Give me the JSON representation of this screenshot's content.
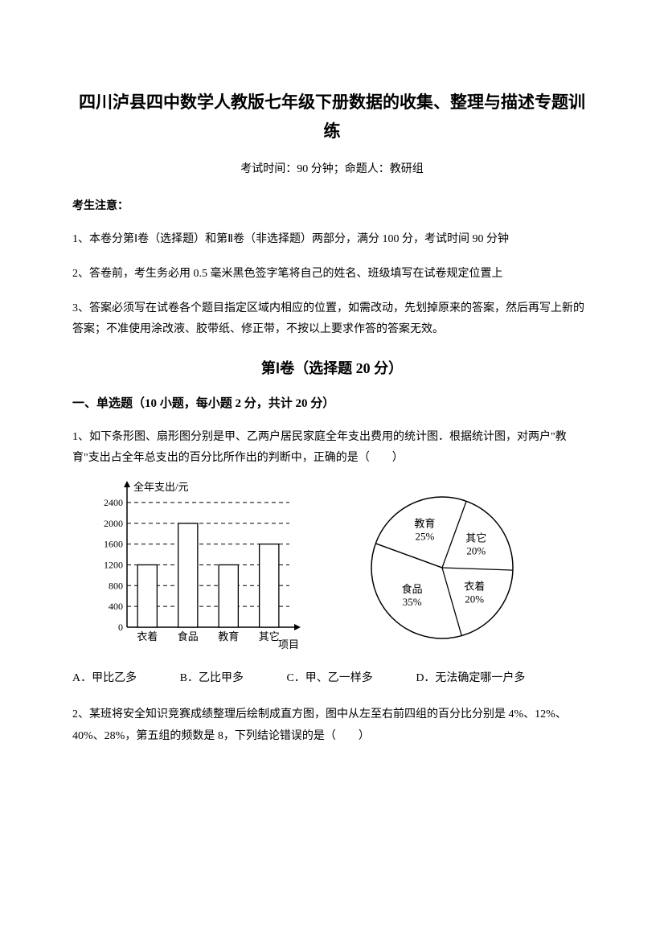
{
  "title": "四川泸县四中数学人教版七年级下册数据的收集、整理与描述专题训练",
  "subtitle": "考试时间：90 分钟；命题人：教研组",
  "notice_header": "考生注意：",
  "notices": [
    "1、本卷分第Ⅰ卷（选择题）和第Ⅱ卷（非选择题）两部分，满分 100 分，考试时间 90 分钟",
    "2、答卷前，考生务必用 0.5 毫米黑色签字笔将自己的姓名、班级填写在试卷规定位置上",
    "3、答案必须写在试卷各个题目指定区域内相应的位置，如需改动，先划掉原来的答案，然后再写上新的答案；不准使用涂改液、胶带纸、修正带，不按以上要求作答的答案无效。"
  ],
  "section1_header": "第Ⅰ卷（选择题  20 分）",
  "q_section_header": "一、单选题（10 小题，每小题 2 分，共计 20 分）",
  "q1_text": "1、如下条形图、扇形图分别是甲、乙两户居民家庭全年支出费用的统计图．根据统计图，对两户\"教育\"支出占全年总支出的百分比所作出的判断中，正确的是（　　）",
  "q1_options": [
    "A．甲比乙多",
    "B．乙比甲多",
    "C．甲、乙一样多",
    "D．无法确定哪一户多"
  ],
  "q2_text": "2、某班将安全知识竞赛成绩整理后绘制成直方图，图中从左至右前四组的百分比分别是 4%、12%、40%、28%，第五组的频数是 8，下列结论错误的是（　　）",
  "bar_chart": {
    "y_label": "全年支出/元",
    "x_label": "项目",
    "categories": [
      "衣着",
      "食品",
      "教育",
      "其它"
    ],
    "values": [
      1200,
      2000,
      1200,
      1600
    ],
    "y_ticks": [
      0,
      400,
      800,
      1200,
      1600,
      2000,
      2400
    ],
    "y_max": 2600,
    "bar_color": "#ffffff",
    "bar_stroke": "#000000",
    "grid_dash": "5,4",
    "axis_color": "#000000",
    "text_color": "#000000",
    "font_size": 13
  },
  "pie_chart": {
    "slices": [
      {
        "label": "教育",
        "pct": "25%",
        "value": 25
      },
      {
        "label": "其它",
        "pct": "20%",
        "value": 20
      },
      {
        "label": "衣着",
        "pct": "20%",
        "value": 20
      },
      {
        "label": "食品",
        "pct": "35%",
        "value": 35
      }
    ],
    "stroke": "#000000",
    "fill": "#ffffff",
    "text_color": "#000000",
    "font_size": 13
  }
}
